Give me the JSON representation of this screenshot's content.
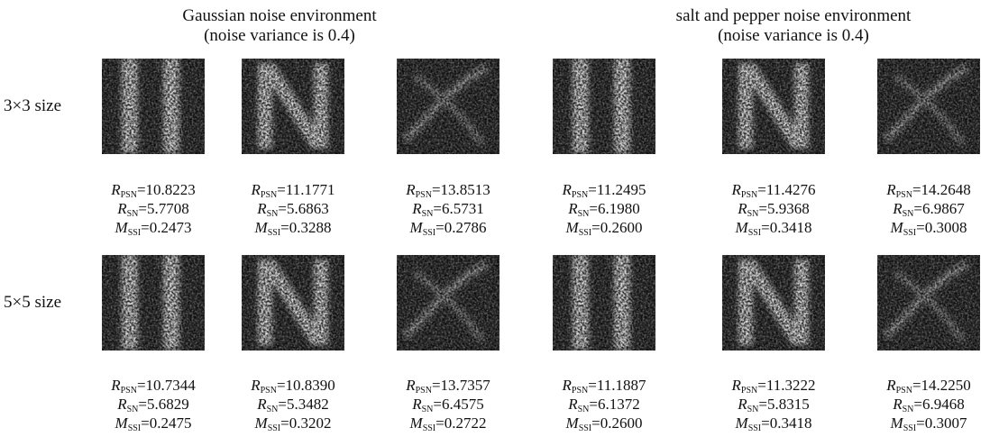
{
  "columns": [
    {
      "title": "Gaussian noise environment",
      "subtitle": "(noise variance is 0.4)"
    },
    {
      "title": "salt and pepper noise environment",
      "subtitle": "(noise variance is 0.4)"
    }
  ],
  "metric_labels": [
    {
      "symbol": "R",
      "subscript": "PSN",
      "relation": "="
    },
    {
      "symbol": "R",
      "subscript": "SN",
      "relation": "="
    },
    {
      "symbol": "M",
      "subscript": "SSI",
      "relation": "="
    }
  ],
  "rows": [
    {
      "label": "3×3 size",
      "cells": [
        [
          "10.8223",
          "5.7708",
          "0.2473"
        ],
        [
          "11.1771",
          "5.6863",
          "0.3288"
        ],
        [
          "13.8513",
          "6.5731",
          "0.2786"
        ],
        [
          "11.2495",
          "6.1980",
          "0.2600"
        ],
        [
          "11.4276",
          "5.9368",
          "0.3418"
        ],
        [
          "14.2648",
          "6.9867",
          "0.3008"
        ]
      ]
    },
    {
      "label": "5×5 size",
      "cells": [
        [
          "10.7344",
          "5.6829",
          "0.2475"
        ],
        [
          "10.8390",
          "5.3482",
          "0.3202"
        ],
        [
          "13.7357",
          "6.4575",
          "0.2722"
        ],
        [
          "11.1887",
          "6.1372",
          "0.2600"
        ],
        [
          "11.3222",
          "5.8315",
          "0.3418"
        ],
        [
          "14.2250",
          "6.9468",
          "0.3007"
        ]
      ]
    }
  ]
}
